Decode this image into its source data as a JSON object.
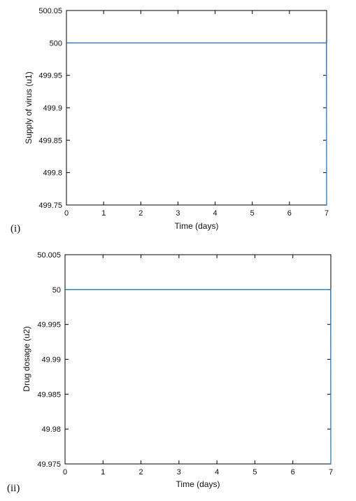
{
  "chart_data": [
    {
      "type": "line",
      "panel_label": "(i)",
      "title": "",
      "xlabel": "Time (days)",
      "ylabel": "Supply of virus (u1)",
      "xlim": [
        0,
        7
      ],
      "ylim": [
        499.75,
        500.05
      ],
      "x_ticks": [
        "0",
        "1",
        "2",
        "3",
        "4",
        "5",
        "6",
        "7"
      ],
      "y_ticks": [
        "500.05",
        "500",
        "499.95",
        "499.9",
        "499.85",
        "499.8",
        "499.75"
      ],
      "grid": false,
      "series": [
        {
          "color": "#2a7ab8",
          "x": [
            0,
            6.995,
            7.0
          ],
          "y": [
            500,
            500,
            499.75
          ]
        }
      ]
    },
    {
      "type": "line",
      "panel_label": "(ii)",
      "title": "",
      "xlabel": "Time (days)",
      "ylabel": "Drug dosage (u2)",
      "xlim": [
        0,
        7
      ],
      "ylim": [
        49.975,
        50.005
      ],
      "x_ticks": [
        "0",
        "1",
        "2",
        "3",
        "4",
        "5",
        "6",
        "7"
      ],
      "y_ticks": [
        "50.005",
        "50",
        "49.995",
        "49.99",
        "49.985",
        "49.98",
        "49.975"
      ],
      "grid": false,
      "series": [
        {
          "color": "#2a7ab8",
          "x": [
            0,
            6.995,
            7.0
          ],
          "y": [
            50,
            50,
            49.975
          ]
        }
      ]
    }
  ]
}
